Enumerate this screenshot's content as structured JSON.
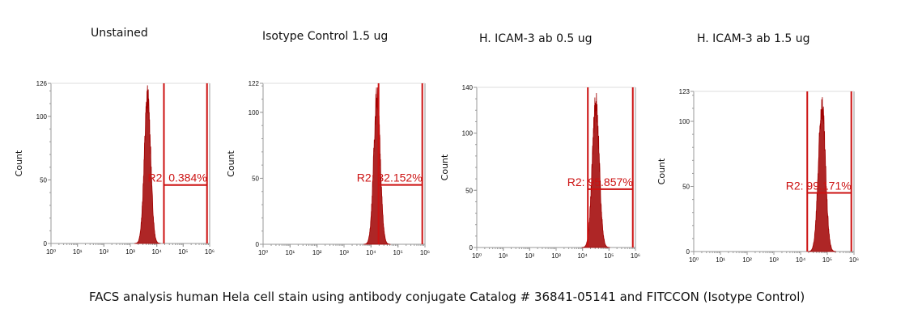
{
  "caption": "FACS analysis human Hela cell stain using antibody conjugate Catalog # 36841-05141 and FITCCON (Isotype Control)",
  "colors": {
    "histogram": "#a00000",
    "gate": "#cc1111",
    "axis": "#999999"
  },
  "chart_data": [
    {
      "type": "area",
      "title": "Unstained",
      "ylabel": "Count",
      "xscale": "log",
      "xlim": [
        0,
        6
      ],
      "xtick_labels": [
        "10⁰",
        "10¹",
        "10²",
        "10³",
        "10⁴",
        "10⁵",
        "10⁶"
      ],
      "ylim": [
        0,
        126
      ],
      "yticks": [
        0,
        50,
        100,
        126
      ],
      "peak_log10": 3.65,
      "spread_log10": 0.12,
      "peak_count": 126,
      "gate": {
        "label": "R2: 0.384%",
        "from_log10": 4.27,
        "to_log10": 5.9,
        "marker_count": 46
      }
    },
    {
      "type": "area",
      "title": "Isotype Control 1.5 ug",
      "ylabel": "Count",
      "xscale": "log",
      "xlim": [
        0,
        6
      ],
      "xtick_labels": [
        "10⁰",
        "10¹",
        "10²",
        "10³",
        "10⁴",
        "10⁵",
        "10⁶"
      ],
      "ylim": [
        0,
        122
      ],
      "yticks": [
        0,
        50,
        100,
        122
      ],
      "peak_log10": 4.22,
      "spread_log10": 0.12,
      "peak_count": 122,
      "gate": {
        "label": "R2: 32.152%",
        "from_log10": 4.28,
        "to_log10": 5.9,
        "marker_count": 45
      }
    },
    {
      "type": "area",
      "title": "H. ICAM-3 ab 0.5 ug",
      "ylabel": "Count",
      "xscale": "log",
      "xlim": [
        0,
        6
      ],
      "xtick_labels": [
        "10⁰",
        "10¹",
        "10²",
        "10³",
        "10⁴",
        "10⁵",
        "10⁶"
      ],
      "ylim": [
        0,
        140
      ],
      "yticks": [
        0,
        50,
        100,
        140
      ],
      "peak_log10": 4.5,
      "spread_log10": 0.13,
      "peak_count": 140,
      "gate": {
        "label": "R2: 95.857%",
        "from_log10": 4.2,
        "to_log10": 5.9,
        "marker_count": 51
      }
    },
    {
      "type": "area",
      "title": "H. ICAM-3 ab 1.5 ug",
      "ylabel": "Count",
      "xscale": "log",
      "xlim": [
        0,
        6
      ],
      "xtick_labels": [
        "10⁰",
        "10¹",
        "10²",
        "10³",
        "10⁴",
        "10⁵",
        "10⁶"
      ],
      "ylim": [
        0,
        123
      ],
      "yticks": [
        0,
        50,
        100,
        123
      ],
      "peak_log10": 4.8,
      "spread_log10": 0.13,
      "peak_count": 123,
      "gate": {
        "label": "R2: 99.171%",
        "from_log10": 4.25,
        "to_log10": 5.9,
        "marker_count": 45
      }
    }
  ]
}
